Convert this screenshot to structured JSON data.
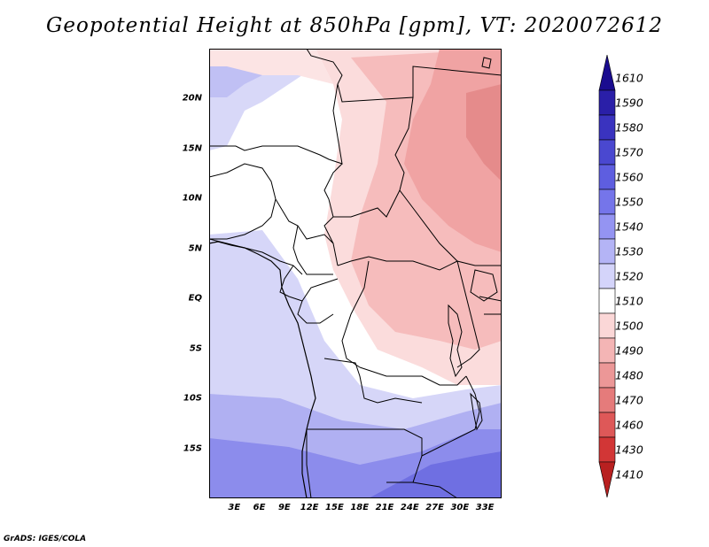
{
  "title": "Geopotential Height at 850hPa [gpm], VT: 2020072612",
  "footer": "GrADS: IGES/COLA",
  "map": {
    "lat_labels": [
      "20N",
      "15N",
      "10N",
      "5N",
      "EQ",
      "5S",
      "10S",
      "15S"
    ],
    "lon_labels": [
      "3E",
      "6E",
      "9E",
      "12E",
      "15E",
      "18E",
      "21E",
      "24E",
      "27E",
      "30E",
      "33E"
    ],
    "lat_range": [
      -20,
      25
    ],
    "lon_range": [
      0,
      35
    ]
  },
  "colorbar": {
    "levels": [
      "1610",
      "1590",
      "1580",
      "1570",
      "1560",
      "1550",
      "1540",
      "1530",
      "1520",
      "1510",
      "1500",
      "1490",
      "1480",
      "1470",
      "1460",
      "1430",
      "1410"
    ],
    "colors": [
      "#1a0c8f",
      "#2a1fa8",
      "#3a33bf",
      "#4a48d0",
      "#5e5ee0",
      "#7575ea",
      "#9494f2",
      "#b4b4f6",
      "#d4d4fa",
      "#ffffff",
      "#fbd7d7",
      "#f4b5b5",
      "#ec9797",
      "#e57b7b",
      "#de5858",
      "#d23636",
      "#b82020"
    ]
  }
}
